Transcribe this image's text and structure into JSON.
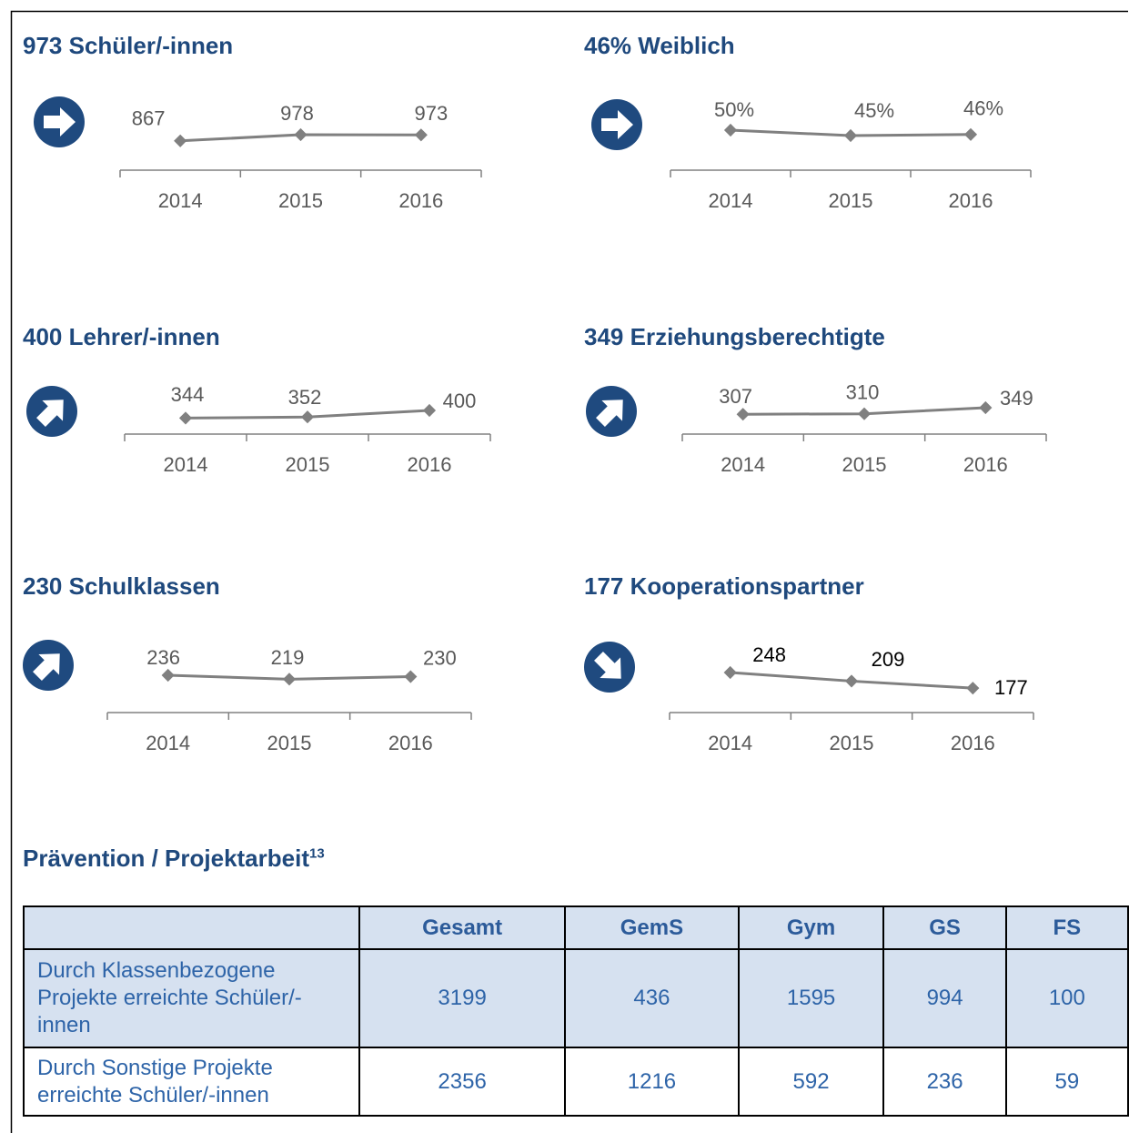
{
  "chart_data": [
    {
      "type": "line",
      "title": "973 Schüler/-innen",
      "categories": [
        "2014",
        "2015",
        "2016"
      ],
      "series": [
        {
          "color": "#808080",
          "values": [
            867,
            978,
            973
          ]
        }
      ],
      "label_color": "#595959"
    },
    {
      "type": "line",
      "title": "46% Weiblich",
      "categories": [
        "2014",
        "2015",
        "2016"
      ],
      "series": [
        {
          "color": "#808080",
          "values": [
            50,
            45,
            46
          ],
          "value_labels": [
            "50%",
            "45%",
            "46%"
          ]
        }
      ],
      "label_color": "#595959"
    },
    {
      "type": "line",
      "title": "400 Lehrer/-innen",
      "categories": [
        "2014",
        "2015",
        "2016"
      ],
      "series": [
        {
          "color": "#808080",
          "values": [
            344,
            352,
            400
          ]
        }
      ],
      "label_color": "#595959"
    },
    {
      "type": "line",
      "title": "349 Erziehungsberechtigte",
      "categories": [
        "2014",
        "2015",
        "2016"
      ],
      "series": [
        {
          "color": "#808080",
          "values": [
            307,
            310,
            349
          ]
        }
      ],
      "label_color": "#595959"
    },
    {
      "type": "line",
      "title": "230 Schulklassen",
      "categories": [
        "2014",
        "2015",
        "2016"
      ],
      "series": [
        {
          "color": "#808080",
          "values": [
            236,
            219,
            230
          ]
        }
      ],
      "label_color": "#595959"
    },
    {
      "type": "line",
      "title": "177 Kooperationspartner",
      "categories": [
        "2014",
        "2015",
        "2016"
      ],
      "series": [
        {
          "color": "#808080",
          "values": [
            248,
            209,
            177
          ]
        }
      ],
      "label_color": "#000000"
    }
  ],
  "section": {
    "title": "Prävention / Projektarbeit",
    "footnote": "13"
  },
  "table": {
    "header": [
      "Gesamt",
      "GemS",
      "Gym",
      "GS",
      "FS"
    ],
    "rows": [
      [
        "Durch Klassenbezogene Projekte erreichte Schüler/-innen",
        3199,
        436,
        1595,
        994,
        100
      ],
      [
        "Durch Sonstige Projekte erreichte Schüler/-innen",
        2356,
        1216,
        592,
        236,
        59
      ]
    ]
  }
}
